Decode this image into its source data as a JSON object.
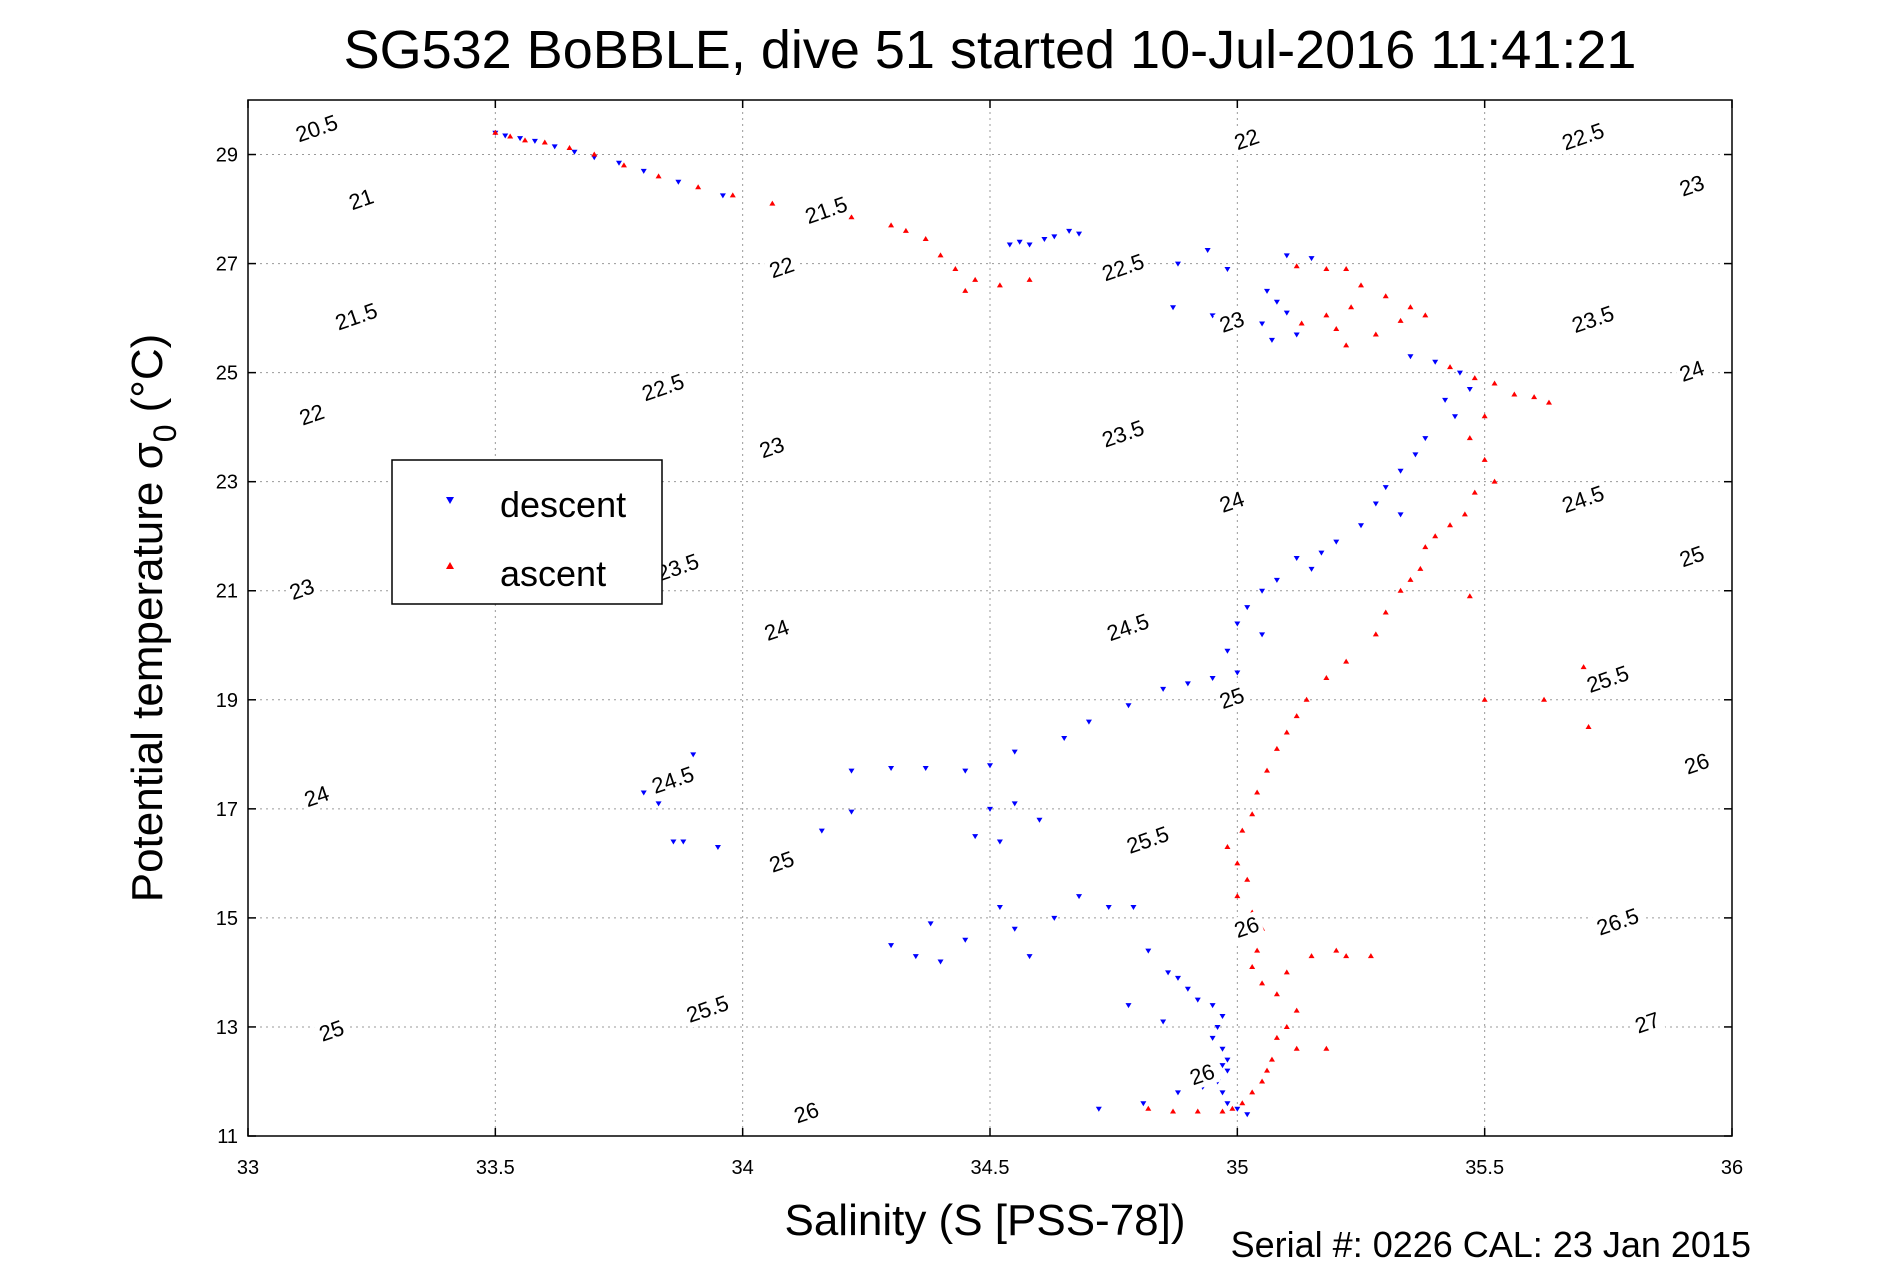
{
  "chart_data": {
    "type": "scatter",
    "title": "SG532 BoBBLE, dive 51 started 10-Jul-2016 11:41:21",
    "xlabel": "Salinity (S [PSS-78])",
    "ylabel_main": "Potential temperature σ",
    "ylabel_sub": "0",
    "ylabel_unit": "(°C)",
    "xlim": [
      33,
      36
    ],
    "ylim": [
      11,
      30
    ],
    "x_ticks": [
      33,
      33.5,
      34,
      34.5,
      35,
      35.5,
      36
    ],
    "x_tick_labels": [
      "33",
      "33.5",
      "34",
      "34.5",
      "35",
      "35.5",
      "36"
    ],
    "y_ticks": [
      11,
      13,
      15,
      17,
      19,
      21,
      23,
      25,
      27,
      29
    ],
    "y_tick_labels": [
      "11",
      "13",
      "15",
      "17",
      "19",
      "21",
      "23",
      "25",
      "27",
      "29"
    ],
    "grid": true,
    "legend_position": "upper-left",
    "contour_levels": [
      20.5,
      21,
      21.5,
      22,
      22.5,
      23,
      23.5,
      24,
      24.5,
      25,
      25.5,
      26,
      26.5,
      27
    ],
    "contour_labels": [
      {
        "text": "20.5",
        "s": 33.14,
        "t": 29.45
      },
      {
        "text": "21",
        "s": 33.23,
        "t": 28.15
      },
      {
        "text": "21.5",
        "s": 33.22,
        "t": 26.0
      },
      {
        "text": "22",
        "s": 33.13,
        "t": 24.2
      },
      {
        "text": "23",
        "s": 33.11,
        "t": 21.0
      },
      {
        "text": "24",
        "s": 33.14,
        "t": 17.2
      },
      {
        "text": "25",
        "s": 33.17,
        "t": 12.9
      },
      {
        "text": "21.5",
        "s": 34.17,
        "t": 27.95
      },
      {
        "text": "22",
        "s": 34.08,
        "t": 26.9
      },
      {
        "text": "22.5",
        "s": 33.84,
        "t": 24.7
      },
      {
        "text": "23",
        "s": 34.06,
        "t": 23.6
      },
      {
        "text": "23.5",
        "s": 33.87,
        "t": 21.4
      },
      {
        "text": "24",
        "s": 34.07,
        "t": 20.25
      },
      {
        "text": "24.5",
        "s": 33.86,
        "t": 17.5
      },
      {
        "text": "25",
        "s": 34.08,
        "t": 16.0
      },
      {
        "text": "25.5",
        "s": 33.93,
        "t": 13.3
      },
      {
        "text": "26",
        "s": 34.13,
        "t": 11.4
      },
      {
        "text": "22",
        "s": 35.02,
        "t": 29.25
      },
      {
        "text": "22.5",
        "s": 34.77,
        "t": 26.9
      },
      {
        "text": "23",
        "s": 34.99,
        "t": 25.9
      },
      {
        "text": "23.5",
        "s": 34.77,
        "t": 23.85
      },
      {
        "text": "24",
        "s": 34.99,
        "t": 22.6
      },
      {
        "text": "24.5",
        "s": 34.78,
        "t": 20.3
      },
      {
        "text": "25",
        "s": 34.99,
        "t": 19.0
      },
      {
        "text": "25.5",
        "s": 34.82,
        "t": 16.4
      },
      {
        "text": "26",
        "s": 35.02,
        "t": 14.8
      },
      {
        "text": "26",
        "s": 34.93,
        "t": 12.1
      },
      {
        "text": "22.5",
        "s": 35.7,
        "t": 29.3
      },
      {
        "text": "23",
        "s": 35.92,
        "t": 28.4
      },
      {
        "text": "23.5",
        "s": 35.72,
        "t": 25.95
      },
      {
        "text": "24",
        "s": 35.92,
        "t": 25.0
      },
      {
        "text": "24.5",
        "s": 35.7,
        "t": 22.65
      },
      {
        "text": "25",
        "s": 35.92,
        "t": 21.6
      },
      {
        "text": "25.5",
        "s": 35.75,
        "t": 19.35
      },
      {
        "text": "26",
        "s": 35.93,
        "t": 17.8
      },
      {
        "text": "26.5",
        "s": 35.77,
        "t": 14.9
      },
      {
        "text": "27",
        "s": 35.83,
        "t": 13.05
      }
    ],
    "series": [
      {
        "name": "descent",
        "marker": "triangle-down",
        "color": "#0000ff",
        "points": [
          [
            33.5,
            29.4
          ],
          [
            33.52,
            29.35
          ],
          [
            33.55,
            29.3
          ],
          [
            33.58,
            29.25
          ],
          [
            33.62,
            29.15
          ],
          [
            33.66,
            29.05
          ],
          [
            33.7,
            28.95
          ],
          [
            33.75,
            28.85
          ],
          [
            33.8,
            28.7
          ],
          [
            33.87,
            28.5
          ],
          [
            33.96,
            28.25
          ],
          [
            34.54,
            27.35
          ],
          [
            34.58,
            27.35
          ],
          [
            34.61,
            27.45
          ],
          [
            34.63,
            27.5
          ],
          [
            34.66,
            27.6
          ],
          [
            34.68,
            27.55
          ],
          [
            34.56,
            27.4
          ],
          [
            34.94,
            27.25
          ],
          [
            34.88,
            27.0
          ],
          [
            34.98,
            26.9
          ],
          [
            35.1,
            27.15
          ],
          [
            35.15,
            27.1
          ],
          [
            35.06,
            26.5
          ],
          [
            35.08,
            26.3
          ],
          [
            35.1,
            26.1
          ],
          [
            35.05,
            25.9
          ],
          [
            35.07,
            25.6
          ],
          [
            35.12,
            25.7
          ],
          [
            35.0,
            25.8
          ],
          [
            34.87,
            26.2
          ],
          [
            34.95,
            26.05
          ],
          [
            35.35,
            25.3
          ],
          [
            35.4,
            25.2
          ],
          [
            35.45,
            25.0
          ],
          [
            35.47,
            24.7
          ],
          [
            35.42,
            24.5
          ],
          [
            35.44,
            24.2
          ],
          [
            35.38,
            23.8
          ],
          [
            35.36,
            23.5
          ],
          [
            35.33,
            23.2
          ],
          [
            35.3,
            22.9
          ],
          [
            35.28,
            22.6
          ],
          [
            35.33,
            22.4
          ],
          [
            35.25,
            22.2
          ],
          [
            35.2,
            21.9
          ],
          [
            35.17,
            21.7
          ],
          [
            35.12,
            21.6
          ],
          [
            35.15,
            21.4
          ],
          [
            35.08,
            21.2
          ],
          [
            35.05,
            21.0
          ],
          [
            35.02,
            20.7
          ],
          [
            35.0,
            20.4
          ],
          [
            35.05,
            20.2
          ],
          [
            34.98,
            19.9
          ],
          [
            35.0,
            19.5
          ],
          [
            34.95,
            19.4
          ],
          [
            34.9,
            19.3
          ],
          [
            34.85,
            19.2
          ],
          [
            34.78,
            18.9
          ],
          [
            34.7,
            18.6
          ],
          [
            34.65,
            18.3
          ],
          [
            34.55,
            18.05
          ],
          [
            34.5,
            17.8
          ],
          [
            34.45,
            17.7
          ],
          [
            34.37,
            17.75
          ],
          [
            34.3,
            17.75
          ],
          [
            34.22,
            17.7
          ],
          [
            34.22,
            16.95
          ],
          [
            34.16,
            16.6
          ],
          [
            34.5,
            17.0
          ],
          [
            34.55,
            17.1
          ],
          [
            34.6,
            16.8
          ],
          [
            34.47,
            16.5
          ],
          [
            34.52,
            16.4
          ],
          [
            33.83,
            17.1
          ],
          [
            33.8,
            17.3
          ],
          [
            33.9,
            18.0
          ],
          [
            33.88,
            16.4
          ],
          [
            33.95,
            16.3
          ],
          [
            33.86,
            16.4
          ],
          [
            34.3,
            14.5
          ],
          [
            34.35,
            14.3
          ],
          [
            34.4,
            14.2
          ],
          [
            34.45,
            14.6
          ],
          [
            34.38,
            14.9
          ],
          [
            34.52,
            15.2
          ],
          [
            34.55,
            14.8
          ],
          [
            34.58,
            14.3
          ],
          [
            34.63,
            15.0
          ],
          [
            34.68,
            15.4
          ],
          [
            34.74,
            15.2
          ],
          [
            34.79,
            15.2
          ],
          [
            34.82,
            14.4
          ],
          [
            34.86,
            14.0
          ],
          [
            34.88,
            13.9
          ],
          [
            34.9,
            13.7
          ],
          [
            34.92,
            13.5
          ],
          [
            34.95,
            13.4
          ],
          [
            34.97,
            13.2
          ],
          [
            34.96,
            13.0
          ],
          [
            34.95,
            12.8
          ],
          [
            34.97,
            12.6
          ],
          [
            34.98,
            12.4
          ],
          [
            34.97,
            12.3
          ],
          [
            34.98,
            12.2
          ],
          [
            34.96,
            12.0
          ],
          [
            34.97,
            11.8
          ],
          [
            34.98,
            11.6
          ],
          [
            35.0,
            11.5
          ],
          [
            35.02,
            11.4
          ],
          [
            34.93,
            11.9
          ],
          [
            34.88,
            11.8
          ],
          [
            34.81,
            11.6
          ],
          [
            34.72,
            11.5
          ],
          [
            34.85,
            13.1
          ],
          [
            34.78,
            13.4
          ]
        ]
      },
      {
        "name": "ascent",
        "marker": "triangle-up",
        "color": "#ff0000",
        "points": [
          [
            33.5,
            29.4
          ],
          [
            33.53,
            29.33
          ],
          [
            33.56,
            29.26
          ],
          [
            33.6,
            29.22
          ],
          [
            33.65,
            29.12
          ],
          [
            33.7,
            29.0
          ],
          [
            33.76,
            28.8
          ],
          [
            33.83,
            28.6
          ],
          [
            33.91,
            28.4
          ],
          [
            33.98,
            28.25
          ],
          [
            34.06,
            28.1
          ],
          [
            34.14,
            27.95
          ],
          [
            34.22,
            27.85
          ],
          [
            34.3,
            27.7
          ],
          [
            34.33,
            27.6
          ],
          [
            34.37,
            27.45
          ],
          [
            34.4,
            27.15
          ],
          [
            34.43,
            26.9
          ],
          [
            34.47,
            26.7
          ],
          [
            34.45,
            26.5
          ],
          [
            34.52,
            26.6
          ],
          [
            34.58,
            26.7
          ],
          [
            35.12,
            26.95
          ],
          [
            35.18,
            26.9
          ],
          [
            35.22,
            26.9
          ],
          [
            35.25,
            26.6
          ],
          [
            35.3,
            26.4
          ],
          [
            35.35,
            26.2
          ],
          [
            35.38,
            26.05
          ],
          [
            35.33,
            25.95
          ],
          [
            35.28,
            25.7
          ],
          [
            35.22,
            25.5
          ],
          [
            35.2,
            25.8
          ],
          [
            35.18,
            26.05
          ],
          [
            35.13,
            25.9
          ],
          [
            35.23,
            26.2
          ],
          [
            35.43,
            25.1
          ],
          [
            35.48,
            24.9
          ],
          [
            35.52,
            24.8
          ],
          [
            35.56,
            24.6
          ],
          [
            35.6,
            24.55
          ],
          [
            35.63,
            24.45
          ],
          [
            35.5,
            24.2
          ],
          [
            35.47,
            23.8
          ],
          [
            35.5,
            23.4
          ],
          [
            35.52,
            23.0
          ],
          [
            35.48,
            22.8
          ],
          [
            35.46,
            22.4
          ],
          [
            35.43,
            22.2
          ],
          [
            35.4,
            22.0
          ],
          [
            35.38,
            21.8
          ],
          [
            35.37,
            21.4
          ],
          [
            35.35,
            21.2
          ],
          [
            35.33,
            21.0
          ],
          [
            35.3,
            20.6
          ],
          [
            35.28,
            20.2
          ],
          [
            35.22,
            19.7
          ],
          [
            35.18,
            19.4
          ],
          [
            35.14,
            19.0
          ],
          [
            35.12,
            18.7
          ],
          [
            35.1,
            18.4
          ],
          [
            35.08,
            18.1
          ],
          [
            35.06,
            17.7
          ],
          [
            35.04,
            17.3
          ],
          [
            35.03,
            16.9
          ],
          [
            35.01,
            16.6
          ],
          [
            34.98,
            16.3
          ],
          [
            35.0,
            16.0
          ],
          [
            35.02,
            15.7
          ],
          [
            35.0,
            15.4
          ],
          [
            35.03,
            15.1
          ],
          [
            35.05,
            14.8
          ],
          [
            35.04,
            14.4
          ],
          [
            35.03,
            14.1
          ],
          [
            35.05,
            13.8
          ],
          [
            35.08,
            13.6
          ],
          [
            35.12,
            13.3
          ],
          [
            35.1,
            13.0
          ],
          [
            35.08,
            12.8
          ],
          [
            35.12,
            12.6
          ],
          [
            35.07,
            12.4
          ],
          [
            35.06,
            12.2
          ],
          [
            35.05,
            12.0
          ],
          [
            35.03,
            11.8
          ],
          [
            35.01,
            11.6
          ],
          [
            34.99,
            11.5
          ],
          [
            34.97,
            11.45
          ],
          [
            34.92,
            11.45
          ],
          [
            34.87,
            11.45
          ],
          [
            34.82,
            11.5
          ],
          [
            35.1,
            14.0
          ],
          [
            35.15,
            14.3
          ],
          [
            35.2,
            14.4
          ],
          [
            35.22,
            14.3
          ],
          [
            35.27,
            14.3
          ],
          [
            35.18,
            12.6
          ],
          [
            35.47,
            20.9
          ],
          [
            35.5,
            19.0
          ],
          [
            35.62,
            19.0
          ],
          [
            35.7,
            19.6
          ],
          [
            35.71,
            18.5
          ]
        ]
      }
    ]
  },
  "footer": {
    "serial_text": "Serial #: 0226  CAL: 23 Jan 2015"
  },
  "colors": {
    "descent": "#0000ff",
    "ascent": "#ff0000",
    "contour": "#000000",
    "grid": "#9a9a9a"
  }
}
